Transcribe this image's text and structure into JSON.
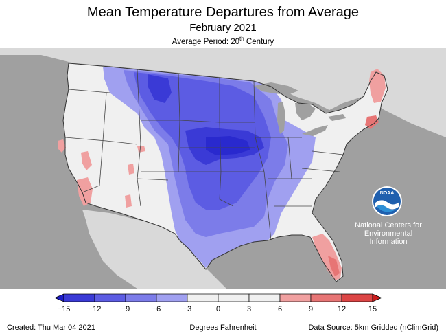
{
  "header": {
    "title": "Mean Temperature Departures from Average",
    "subtitle": "February 2021",
    "period_prefix": "Average Period: 20",
    "period_sup": "th",
    "period_suffix": " Century"
  },
  "map": {
    "region": "Contiguous United States",
    "ocean_color": "#a0a0a0",
    "land_color": "#d9d9d9",
    "lake_color": "#a0a0a0",
    "near_normal_color": "#f0f0f0",
    "state_line_color": "#444444"
  },
  "logo": {
    "icon": "noaa-logo-icon",
    "text": "NOAA",
    "lines": [
      "National Centers for",
      "Environmental",
      "Information"
    ]
  },
  "legend": {
    "ticks": [
      "−15",
      "−12",
      "−9",
      "−6",
      "−3",
      "0",
      "3",
      "6",
      "9",
      "12",
      "15"
    ],
    "colors": [
      "#1c1cc8",
      "#3a3ad6",
      "#5c5ce3",
      "#7c7ce9",
      "#a0a0f0",
      "#f0f0f0",
      "#f0f0f0",
      "#f0a0a0",
      "#e77575",
      "#dc4545",
      "#c81c1c"
    ]
  },
  "footer": {
    "created": "Created: Thu Mar 04 2021",
    "units": "Degrees Fahrenheit",
    "source": "Data Source: 5km Gridded (nClimGrid)"
  }
}
